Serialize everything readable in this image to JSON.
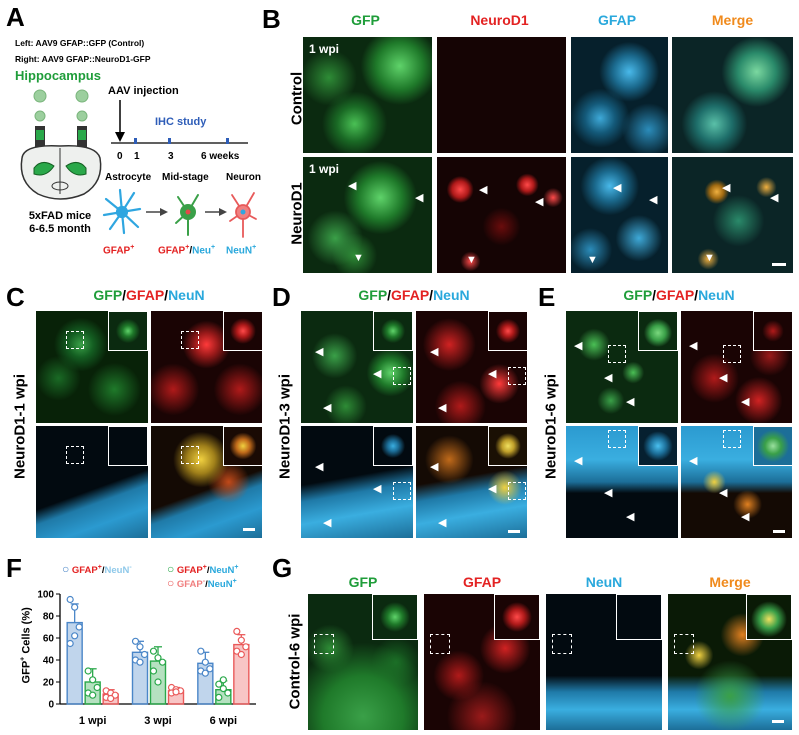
{
  "panels": {
    "A": "A",
    "B": "B",
    "C": "C",
    "D": "D",
    "E": "E",
    "F": "F",
    "G": "G"
  },
  "panelA": {
    "left_line": "Left: AAV9 GFAP::GFP (Control)",
    "right_line": "Right: AAV9 GFAP::NeuroD1-GFP",
    "region": "Hippocampus",
    "aav_injection": "AAV injection",
    "ihc_study": "IHC study",
    "timeline_ticks": [
      "0",
      "1",
      "3",
      "6 weeks"
    ],
    "mice_line1": "5xFAD mice",
    "mice_line2": "6-6.5 month",
    "stages": [
      "Astrocyte",
      "Mid-stage",
      "Neuron"
    ],
    "markers": {
      "astro": "GFAP",
      "astro_sup": "+",
      "mid_gfap": "GFAP",
      "mid_gfap_sup": "+",
      "slash": "/",
      "mid_neu": "Neu",
      "mid_neu_sup": "+",
      "neuron": "NeuN",
      "neuron_sup": "+"
    }
  },
  "panelB": {
    "columns": [
      "GFP",
      "NeuroD1",
      "GFAP",
      "Merge"
    ],
    "rows": [
      "Control",
      "NeuroD1"
    ],
    "wpi_label": "1 wpi"
  },
  "triple_header": {
    "gfp": "GFP",
    "slash": "/",
    "gfap": "GFAP",
    "neun": "NeuN"
  },
  "panelC": {
    "row_label": "NeuroD1-1 wpi"
  },
  "panelD": {
    "row_label": "NeuroD1-3 wpi"
  },
  "panelE": {
    "row_label": "NeuroD1-6 wpi"
  },
  "panelG": {
    "columns": [
      "GFP",
      "GFAP",
      "NeuN",
      "Merge"
    ],
    "row_label": "Control-6 wpi"
  },
  "colors": {
    "gfp": "#1f9d3a",
    "neurod1": "#e32222",
    "gfap_blue": "#29a8dc",
    "merge": "#f08a1c",
    "red": "#e32222",
    "neun": "#29a8dc",
    "pink": "#f08080",
    "light_blue": "#8fc9ea"
  },
  "chart_data": {
    "type": "bar",
    "ylabel": "GFP+ Cells (%)",
    "ylabel_main": "GFP",
    "ylabel_sup": "+",
    "ylabel_rest": " Cells (%)",
    "ylim": [
      0,
      100
    ],
    "yticks": [
      "0",
      "20",
      "40",
      "60",
      "80",
      "100"
    ],
    "categories": [
      "1 wpi",
      "3 wpi",
      "6 wpi"
    ],
    "legend_placement": "top",
    "series": [
      {
        "name": "GFAP+/NeuN-",
        "color": "#4a86c8",
        "values": [
          74,
          47,
          37
        ],
        "errors": [
          17,
          10,
          10
        ],
        "points": [
          [
            95,
            88,
            70,
            55,
            62
          ],
          [
            57,
            52,
            45,
            40,
            38
          ],
          [
            48,
            38,
            32,
            30,
            28
          ]
        ]
      },
      {
        "name": "GFAP+/NeuN+",
        "color": "#2aa84a",
        "values": [
          20,
          39,
          13
        ],
        "errors": [
          12,
          13,
          8
        ],
        "points": [
          [
            30,
            22,
            15,
            10,
            8
          ],
          [
            48,
            42,
            38,
            30,
            20
          ],
          [
            18,
            14,
            10,
            6,
            22
          ]
        ]
      },
      {
        "name": "GFAP-/NeuN+",
        "color": "#ea5a5a",
        "values": [
          9,
          12,
          54
        ],
        "errors": [
          4,
          3,
          9
        ],
        "points": [
          [
            12,
            10,
            8,
            6,
            5
          ],
          [
            15,
            13,
            12,
            10,
            11
          ],
          [
            66,
            58,
            52,
            48,
            45
          ]
        ]
      }
    ],
    "legend": [
      {
        "a": "GFAP",
        "a_sup": "+",
        "b": "NeuN",
        "b_sup": "-",
        "a_color": "#e32222",
        "b_color": "#8fc9ea"
      },
      {
        "a": "GFAP",
        "a_sup": "+",
        "b": "NeuN",
        "b_sup": "+",
        "a_color": "#e32222",
        "b_color": "#29a8dc"
      },
      {
        "a": "GFAP",
        "a_sup": "-",
        "b": "NeuN",
        "b_sup": "+",
        "a_color": "#f08080",
        "b_color": "#29a8dc"
      }
    ]
  }
}
